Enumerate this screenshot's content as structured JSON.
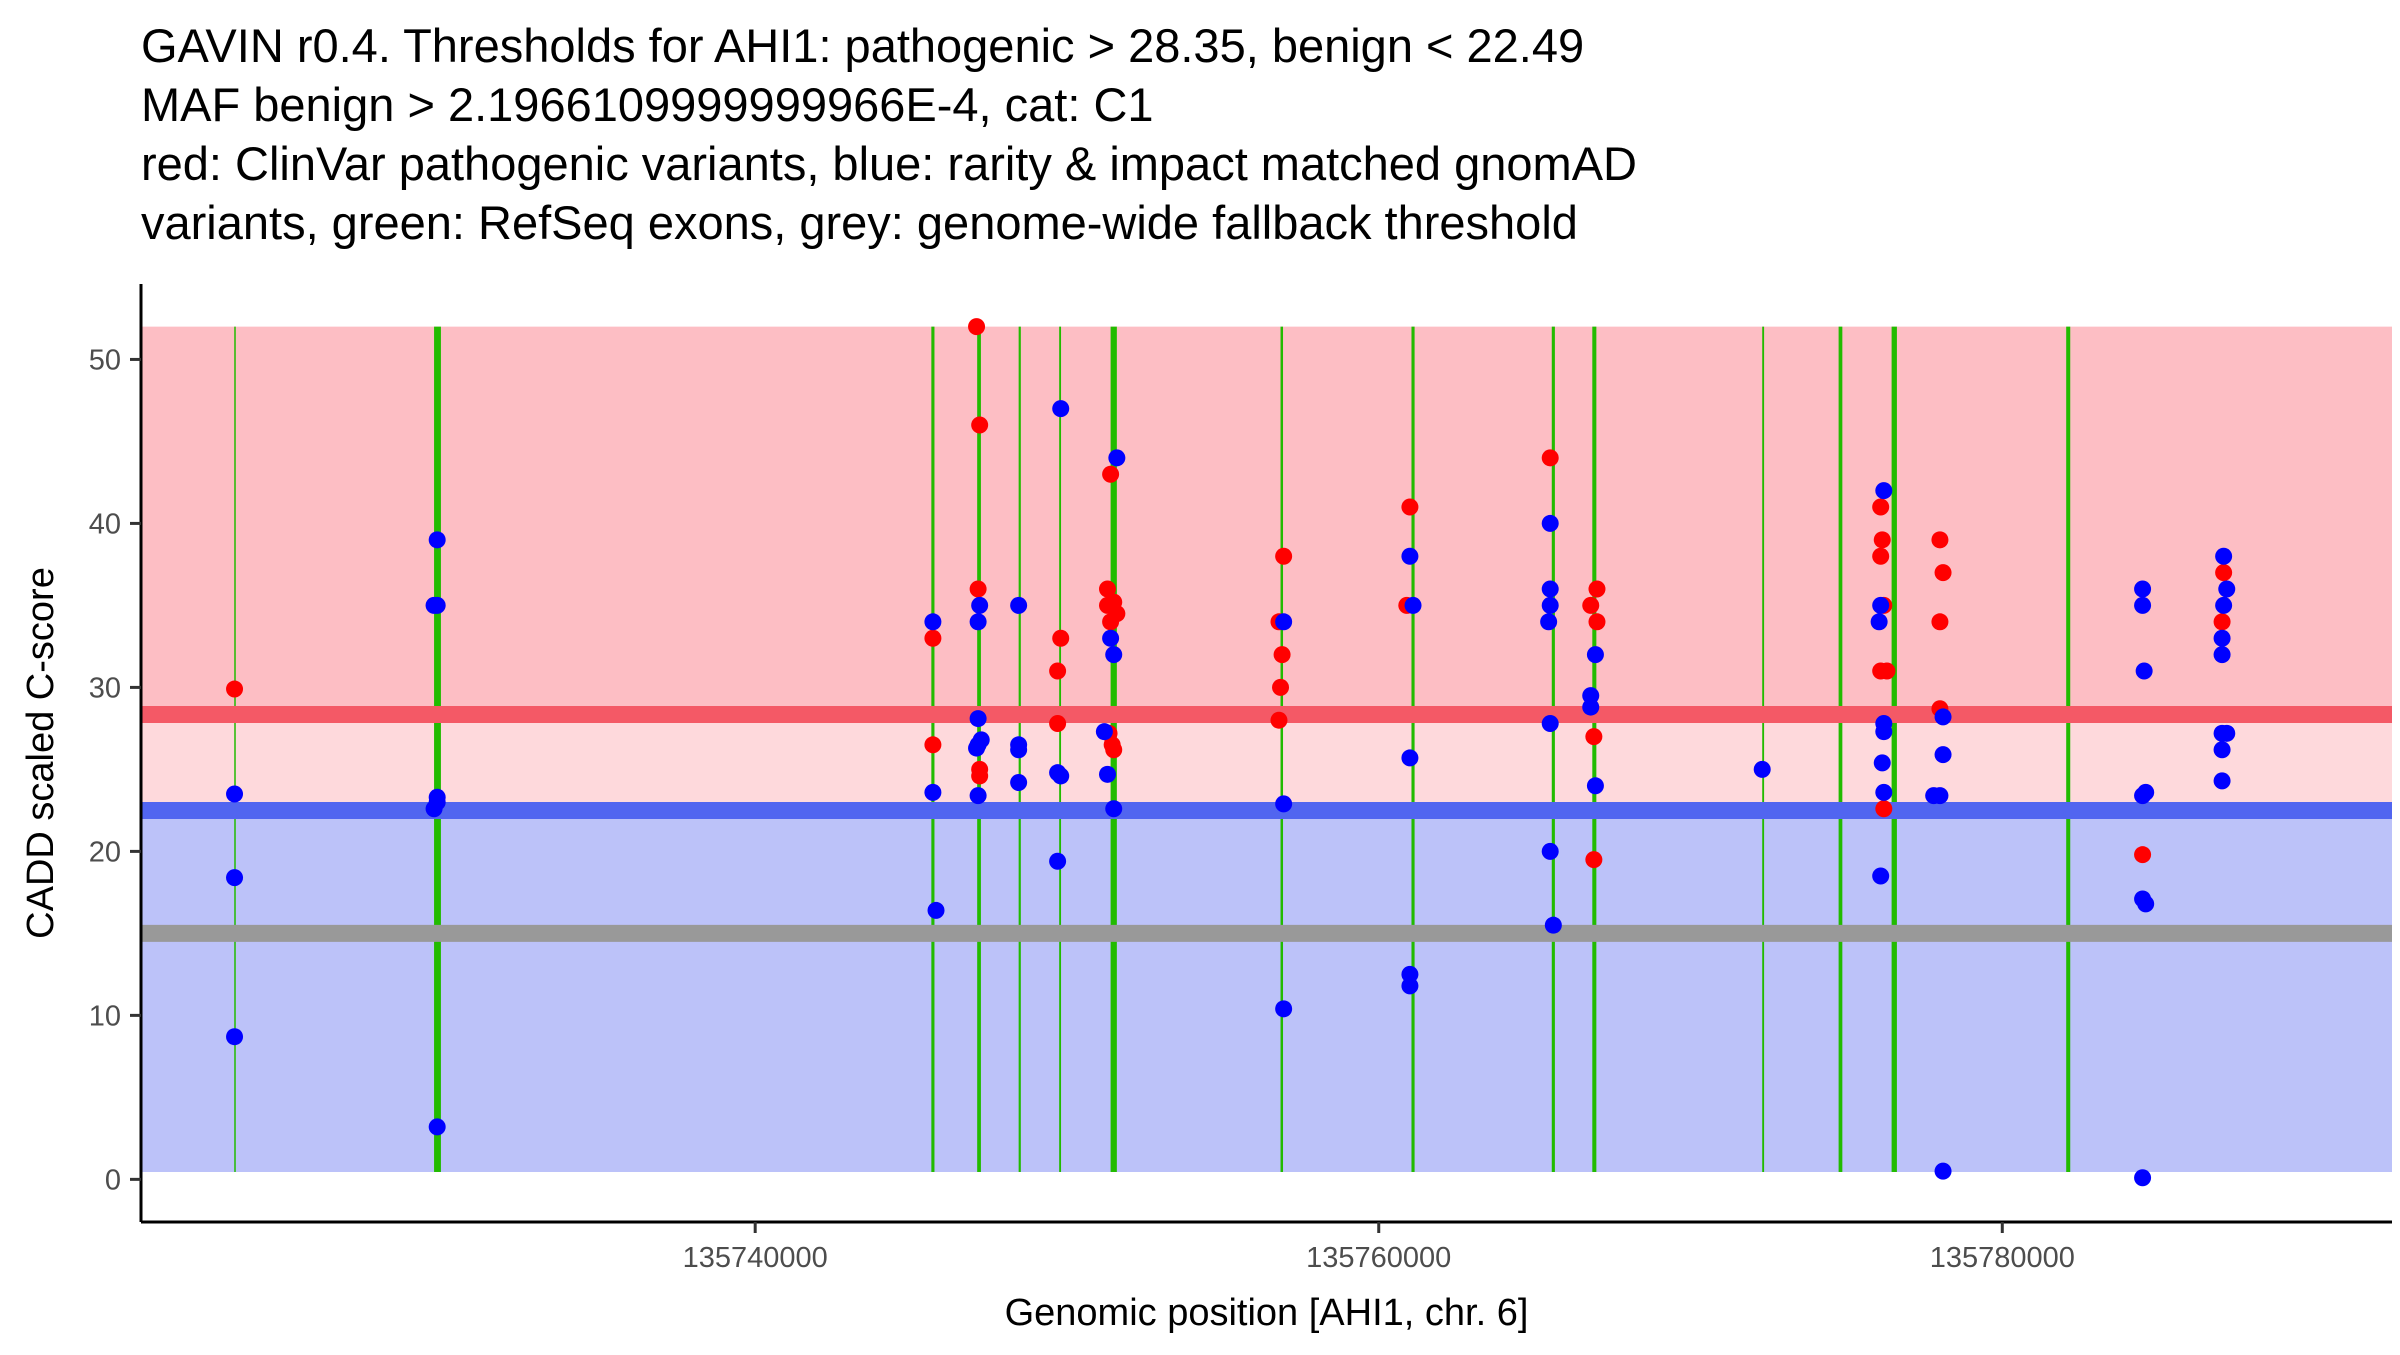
{
  "chart_data": {
    "type": "scatter",
    "title_lines": [
      "GAVIN r0.4. Thresholds for AHI1: pathogenic > 28.35, benign < 22.49",
      "MAF benign > 2.1966109999999966E-4, cat: C1",
      "red: ClinVar pathogenic variants, blue: rarity & impact matched gnomAD",
      "variants, green: RefSeq exons, grey: genome-wide fallback threshold"
    ],
    "xlabel": "Genomic position [AHI1, chr. 6]",
    "ylabel": "CADD scaled C-score",
    "xlim": [
      135720300,
      135792500
    ],
    "ylim": [
      -2.6,
      54.6
    ],
    "x_ticks": [
      135740000,
      135760000,
      135780000
    ],
    "x_tick_labels": [
      "135740000",
      "135760000",
      "135780000"
    ],
    "y_ticks": [
      0,
      10,
      20,
      30,
      40,
      50
    ],
    "y_tick_labels": [
      "0",
      "10",
      "20",
      "30",
      "40",
      "50"
    ],
    "colors": {
      "pathogenic_region": "#fdbec4",
      "middle_region": "#fed9dc",
      "benign_region": "#bcc2f9",
      "pathogenic_threshold": "#f45966",
      "benign_threshold": "#5165f0",
      "fallback_threshold": "#999999",
      "exon": "#22bb00",
      "clinvar": "#ff0000",
      "gnomad": "#0000ff"
    },
    "regions": {
      "x_start": 135720300,
      "x_end": 135792500,
      "pathogenic": [
        28.35,
        52
      ],
      "middle": [
        22.49,
        28.35
      ],
      "benign": [
        0.45,
        22.49
      ]
    },
    "thresholds": {
      "pathogenic": 28.35,
      "benign": 22.49,
      "fallback": 15.0
    },
    "exons": [
      {
        "start": 135723300,
        "end": 135723330
      },
      {
        "start": 135729700,
        "end": 135729920
      },
      {
        "start": 135745650,
        "end": 135745750
      },
      {
        "start": 135747120,
        "end": 135747240
      },
      {
        "start": 135748450,
        "end": 135748520
      },
      {
        "start": 135749750,
        "end": 135749810
      },
      {
        "start": 135751400,
        "end": 135751600
      },
      {
        "start": 135756850,
        "end": 135756930
      },
      {
        "start": 135761050,
        "end": 135761150
      },
      {
        "start": 135765550,
        "end": 135765650
      },
      {
        "start": 135766850,
        "end": 135766980
      },
      {
        "start": 135772300,
        "end": 135772360
      },
      {
        "start": 135774750,
        "end": 135774870
      },
      {
        "start": 135776450,
        "end": 135776620
      },
      {
        "start": 135782050,
        "end": 135782180
      }
    ],
    "series": [
      {
        "name": "ClinVar pathogenic",
        "color": "#ff0000",
        "points": [
          [
            135723300,
            29.9
          ],
          [
            135745700,
            33.0
          ],
          [
            135745700,
            26.5
          ],
          [
            135747100,
            52.0
          ],
          [
            135747150,
            36.0
          ],
          [
            135747200,
            46.0
          ],
          [
            135747200,
            24.6
          ],
          [
            135747200,
            25.0
          ],
          [
            135749700,
            31.0
          ],
          [
            135749700,
            27.8
          ],
          [
            135749800,
            33.0
          ],
          [
            135751300,
            36.0
          ],
          [
            135751400,
            43.0
          ],
          [
            135751300,
            35.0
          ],
          [
            135751400,
            34.0
          ],
          [
            135751350,
            27.2
          ],
          [
            135751450,
            26.5
          ],
          [
            135751500,
            26.2
          ],
          [
            135751500,
            35.2
          ],
          [
            135751600,
            34.5
          ],
          [
            135756800,
            34.0
          ],
          [
            135756850,
            30.0
          ],
          [
            135756800,
            28.0
          ],
          [
            135756950,
            38.0
          ],
          [
            135756900,
            32.0
          ],
          [
            135760900,
            35.0
          ],
          [
            135761000,
            41.0
          ],
          [
            135765500,
            44.0
          ],
          [
            135766800,
            35.0
          ],
          [
            135766900,
            27.0
          ],
          [
            135766900,
            19.5
          ],
          [
            135767000,
            36.0
          ],
          [
            135767000,
            34.0
          ],
          [
            135776100,
            41.0
          ],
          [
            135776150,
            39.0
          ],
          [
            135776100,
            38.0
          ],
          [
            135776200,
            35.0
          ],
          [
            135776100,
            31.0
          ],
          [
            135776300,
            31.0
          ],
          [
            135776200,
            22.6
          ],
          [
            135778000,
            39.0
          ],
          [
            135778000,
            34.0
          ],
          [
            135778000,
            28.7
          ],
          [
            135778100,
            37.0
          ],
          [
            135784500,
            19.8
          ],
          [
            135787100,
            37.0
          ],
          [
            135787050,
            34.0
          ]
        ]
      },
      {
        "name": "gnomAD rarity & impact matched",
        "color": "#0000ff",
        "points": [
          [
            135723300,
            23.5
          ],
          [
            135723300,
            18.4
          ],
          [
            135723300,
            8.7
          ],
          [
            135729700,
            35.0
          ],
          [
            135729800,
            35.0
          ],
          [
            135729800,
            39.0
          ],
          [
            135729800,
            23.0
          ],
          [
            135729700,
            22.6
          ],
          [
            135729800,
            23.3
          ],
          [
            135729800,
            3.2
          ],
          [
            135745700,
            34.0
          ],
          [
            135745700,
            23.6
          ],
          [
            135745800,
            16.4
          ],
          [
            135747100,
            26.3
          ],
          [
            135747150,
            28.1
          ],
          [
            135747150,
            34.0
          ],
          [
            135747150,
            26.5
          ],
          [
            135747200,
            35.0
          ],
          [
            135747250,
            26.8
          ],
          [
            135747150,
            23.4
          ],
          [
            135748450,
            35.0
          ],
          [
            135748450,
            26.5
          ],
          [
            135748450,
            26.2
          ],
          [
            135748450,
            24.2
          ],
          [
            135749800,
            47.0
          ],
          [
            135749700,
            24.8
          ],
          [
            135749800,
            24.6
          ],
          [
            135749700,
            19.4
          ],
          [
            135751200,
            27.3
          ],
          [
            135751300,
            24.7
          ],
          [
            135751400,
            33.0
          ],
          [
            135751600,
            44.0
          ],
          [
            135751500,
            32.0
          ],
          [
            135751500,
            22.6
          ],
          [
            135756950,
            34.0
          ],
          [
            135756950,
            22.9
          ],
          [
            135756950,
            10.4
          ],
          [
            135761000,
            38.0
          ],
          [
            135761100,
            35.0
          ],
          [
            135761000,
            25.7
          ],
          [
            135761000,
            12.5
          ],
          [
            135761000,
            11.8
          ],
          [
            135765500,
            40.0
          ],
          [
            135765500,
            36.0
          ],
          [
            135765500,
            35.0
          ],
          [
            135765450,
            34.0
          ],
          [
            135765500,
            27.8
          ],
          [
            135765500,
            20.0
          ],
          [
            135765600,
            15.5
          ],
          [
            135766800,
            29.5
          ],
          [
            135766800,
            28.8
          ],
          [
            135766950,
            32.0
          ],
          [
            135766950,
            24.0
          ],
          [
            135772300,
            25.0
          ],
          [
            135776200,
            42.0
          ],
          [
            135776100,
            35.0
          ],
          [
            135776050,
            34.0
          ],
          [
            135776200,
            27.8
          ],
          [
            135776200,
            27.3
          ],
          [
            135776150,
            25.4
          ],
          [
            135776200,
            23.6
          ],
          [
            135776100,
            18.5
          ],
          [
            135777800,
            23.4
          ],
          [
            135778000,
            23.4
          ],
          [
            135778100,
            28.2
          ],
          [
            135778100,
            25.9
          ],
          [
            135778100,
            0.5
          ],
          [
            135784500,
            36.0
          ],
          [
            135784500,
            35.0
          ],
          [
            135784550,
            31.0
          ],
          [
            135784500,
            23.4
          ],
          [
            135784600,
            23.6
          ],
          [
            135784500,
            17.1
          ],
          [
            135784600,
            16.8
          ],
          [
            135784500,
            0.1
          ],
          [
            135787100,
            38.0
          ],
          [
            135787200,
            36.0
          ],
          [
            135787100,
            35.0
          ],
          [
            135787050,
            33.0
          ],
          [
            135787050,
            32.0
          ],
          [
            135787050,
            27.2
          ],
          [
            135787200,
            27.2
          ],
          [
            135787050,
            26.2
          ],
          [
            135787050,
            24.3
          ]
        ]
      }
    ]
  }
}
